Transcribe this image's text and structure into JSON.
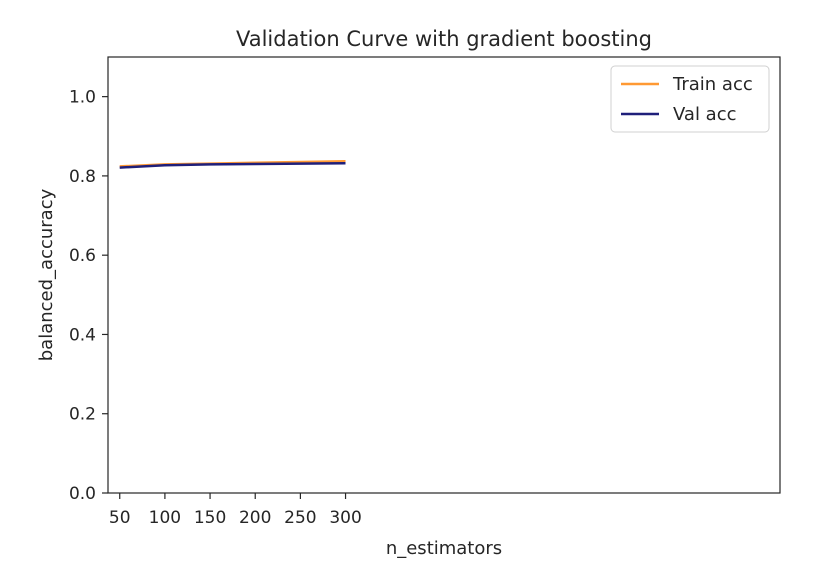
{
  "chart_data": {
    "type": "line",
    "title": "Validation Curve with gradient boosting",
    "xlabel": "n_estimators",
    "ylabel": "balanced_accuracy",
    "xlim": [
      37,
      781
    ],
    "ylim": [
      0,
      1.1
    ],
    "xticks": [
      50,
      100,
      150,
      200,
      250,
      300
    ],
    "yticks": [
      0.0,
      0.2,
      0.4,
      0.6,
      0.8,
      1.0
    ],
    "xtick_labels": [
      "50",
      "100",
      "150",
      "200",
      "250",
      "300"
    ],
    "ytick_labels": [
      "0.0",
      "0.2",
      "0.4",
      "0.6",
      "0.8",
      "1.0"
    ],
    "grid": false,
    "legend_position": "top-right",
    "x": [
      50,
      100,
      150,
      200,
      250,
      300
    ],
    "series": [
      {
        "name": "Train acc",
        "color": "#ff9933",
        "values": [
          0.824,
          0.829,
          0.831,
          0.833,
          0.835,
          0.837
        ]
      },
      {
        "name": "Val acc",
        "color": "#1f1f7a",
        "values": [
          0.821,
          0.827,
          0.829,
          0.83,
          0.831,
          0.832
        ]
      }
    ]
  }
}
